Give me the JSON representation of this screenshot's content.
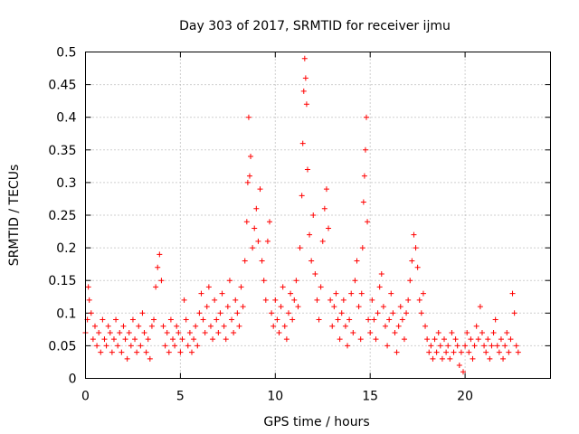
{
  "chart_data": {
    "type": "scatter",
    "title": "Day 303 of 2017, SRMTID for receiver ijmu",
    "xlabel": "GPS time / hours",
    "ylabel": "SRMTID / TECUs",
    "xlim": [
      0,
      24.5
    ],
    "ylim": [
      0,
      0.5
    ],
    "x_ticks": [
      "0",
      "5",
      "10",
      "15",
      "20"
    ],
    "x_tick_values": [
      0,
      5,
      10,
      15,
      20
    ],
    "y_ticks": [
      "0",
      "0.05",
      "0.1",
      "0.15",
      "0.2",
      "0.25",
      "0.3",
      "0.35",
      "0.4",
      "0.45",
      "0.5"
    ],
    "y_tick_values": [
      0,
      0.05,
      0.1,
      0.15,
      0.2,
      0.25,
      0.3,
      0.35,
      0.4,
      0.45,
      0.5
    ],
    "grid": true,
    "marker": "plus",
    "color": "#ff0000",
    "series": [
      {
        "name": "SRMTID",
        "points": [
          [
            0.0,
            0.07
          ],
          [
            0.1,
            0.09
          ],
          [
            0.15,
            0.14
          ],
          [
            0.2,
            0.12
          ],
          [
            0.3,
            0.1
          ],
          [
            0.4,
            0.06
          ],
          [
            0.5,
            0.08
          ],
          [
            0.6,
            0.05
          ],
          [
            0.7,
            0.07
          ],
          [
            0.8,
            0.04
          ],
          [
            0.9,
            0.09
          ],
          [
            1.0,
            0.06
          ],
          [
            1.1,
            0.05
          ],
          [
            1.2,
            0.08
          ],
          [
            1.3,
            0.07
          ],
          [
            1.4,
            0.04
          ],
          [
            1.5,
            0.06
          ],
          [
            1.6,
            0.09
          ],
          [
            1.7,
            0.05
          ],
          [
            1.8,
            0.07
          ],
          [
            1.9,
            0.04
          ],
          [
            2.0,
            0.08
          ],
          [
            2.1,
            0.06
          ],
          [
            2.2,
            0.03
          ],
          [
            2.3,
            0.07
          ],
          [
            2.4,
            0.05
          ],
          [
            2.5,
            0.09
          ],
          [
            2.6,
            0.06
          ],
          [
            2.7,
            0.04
          ],
          [
            2.8,
            0.08
          ],
          [
            2.9,
            0.05
          ],
          [
            3.0,
            0.1
          ],
          [
            3.1,
            0.07
          ],
          [
            3.2,
            0.04
          ],
          [
            3.3,
            0.06
          ],
          [
            3.4,
            0.03
          ],
          [
            3.5,
            0.08
          ],
          [
            3.6,
            0.09
          ],
          [
            3.7,
            0.14
          ],
          [
            3.8,
            0.17
          ],
          [
            3.9,
            0.19
          ],
          [
            4.0,
            0.15
          ],
          [
            4.1,
            0.08
          ],
          [
            4.2,
            0.05
          ],
          [
            4.3,
            0.07
          ],
          [
            4.4,
            0.04
          ],
          [
            4.5,
            0.09
          ],
          [
            4.6,
            0.06
          ],
          [
            4.7,
            0.05
          ],
          [
            4.8,
            0.08
          ],
          [
            4.9,
            0.07
          ],
          [
            5.0,
            0.04
          ],
          [
            5.1,
            0.06
          ],
          [
            5.2,
            0.12
          ],
          [
            5.3,
            0.09
          ],
          [
            5.4,
            0.05
          ],
          [
            5.5,
            0.07
          ],
          [
            5.6,
            0.04
          ],
          [
            5.7,
            0.06
          ],
          [
            5.8,
            0.08
          ],
          [
            5.9,
            0.05
          ],
          [
            6.0,
            0.1
          ],
          [
            6.1,
            0.13
          ],
          [
            6.2,
            0.09
          ],
          [
            6.3,
            0.07
          ],
          [
            6.4,
            0.11
          ],
          [
            6.5,
            0.14
          ],
          [
            6.6,
            0.08
          ],
          [
            6.7,
            0.06
          ],
          [
            6.8,
            0.12
          ],
          [
            6.9,
            0.09
          ],
          [
            7.0,
            0.07
          ],
          [
            7.1,
            0.1
          ],
          [
            7.2,
            0.13
          ],
          [
            7.3,
            0.08
          ],
          [
            7.4,
            0.06
          ],
          [
            7.5,
            0.11
          ],
          [
            7.6,
            0.15
          ],
          [
            7.7,
            0.09
          ],
          [
            7.8,
            0.07
          ],
          [
            7.9,
            0.12
          ],
          [
            8.0,
            0.1
          ],
          [
            8.1,
            0.08
          ],
          [
            8.2,
            0.14
          ],
          [
            8.3,
            0.11
          ],
          [
            8.4,
            0.18
          ],
          [
            8.5,
            0.24
          ],
          [
            8.55,
            0.3
          ],
          [
            8.6,
            0.4
          ],
          [
            8.65,
            0.31
          ],
          [
            8.7,
            0.34
          ],
          [
            8.8,
            0.2
          ],
          [
            8.9,
            0.23
          ],
          [
            9.0,
            0.26
          ],
          [
            9.1,
            0.21
          ],
          [
            9.2,
            0.29
          ],
          [
            9.3,
            0.18
          ],
          [
            9.4,
            0.15
          ],
          [
            9.5,
            0.12
          ],
          [
            9.6,
            0.21
          ],
          [
            9.7,
            0.24
          ],
          [
            9.8,
            0.1
          ],
          [
            9.9,
            0.08
          ],
          [
            10.0,
            0.12
          ],
          [
            10.1,
            0.09
          ],
          [
            10.2,
            0.07
          ],
          [
            10.3,
            0.11
          ],
          [
            10.4,
            0.14
          ],
          [
            10.5,
            0.08
          ],
          [
            10.6,
            0.06
          ],
          [
            10.7,
            0.1
          ],
          [
            10.8,
            0.13
          ],
          [
            10.9,
            0.09
          ],
          [
            11.0,
            0.12
          ],
          [
            11.1,
            0.15
          ],
          [
            11.2,
            0.11
          ],
          [
            11.3,
            0.2
          ],
          [
            11.4,
            0.28
          ],
          [
            11.45,
            0.36
          ],
          [
            11.5,
            0.44
          ],
          [
            11.55,
            0.49
          ],
          [
            11.6,
            0.46
          ],
          [
            11.65,
            0.42
          ],
          [
            11.7,
            0.32
          ],
          [
            11.8,
            0.22
          ],
          [
            11.9,
            0.18
          ],
          [
            12.0,
            0.25
          ],
          [
            12.1,
            0.16
          ],
          [
            12.2,
            0.12
          ],
          [
            12.3,
            0.09
          ],
          [
            12.4,
            0.14
          ],
          [
            12.5,
            0.21
          ],
          [
            12.6,
            0.26
          ],
          [
            12.7,
            0.29
          ],
          [
            12.8,
            0.23
          ],
          [
            12.9,
            0.12
          ],
          [
            13.0,
            0.08
          ],
          [
            13.1,
            0.11
          ],
          [
            13.2,
            0.13
          ],
          [
            13.3,
            0.09
          ],
          [
            13.4,
            0.06
          ],
          [
            13.5,
            0.1
          ],
          [
            13.6,
            0.12
          ],
          [
            13.7,
            0.08
          ],
          [
            13.8,
            0.05
          ],
          [
            13.9,
            0.09
          ],
          [
            14.0,
            0.13
          ],
          [
            14.1,
            0.07
          ],
          [
            14.2,
            0.15
          ],
          [
            14.3,
            0.18
          ],
          [
            14.4,
            0.11
          ],
          [
            14.5,
            0.06
          ],
          [
            14.55,
            0.13
          ],
          [
            14.6,
            0.2
          ],
          [
            14.65,
            0.27
          ],
          [
            14.7,
            0.31
          ],
          [
            14.75,
            0.35
          ],
          [
            14.8,
            0.4
          ],
          [
            14.85,
            0.24
          ],
          [
            14.9,
            0.09
          ],
          [
            15.0,
            0.07
          ],
          [
            15.1,
            0.12
          ],
          [
            15.2,
            0.09
          ],
          [
            15.3,
            0.06
          ],
          [
            15.4,
            0.1
          ],
          [
            15.5,
            0.14
          ],
          [
            15.6,
            0.16
          ],
          [
            15.7,
            0.11
          ],
          [
            15.8,
            0.08
          ],
          [
            15.9,
            0.05
          ],
          [
            16.0,
            0.09
          ],
          [
            16.1,
            0.13
          ],
          [
            16.2,
            0.1
          ],
          [
            16.3,
            0.07
          ],
          [
            16.4,
            0.04
          ],
          [
            16.5,
            0.08
          ],
          [
            16.6,
            0.11
          ],
          [
            16.7,
            0.09
          ],
          [
            16.8,
            0.06
          ],
          [
            16.9,
            0.1
          ],
          [
            17.0,
            0.12
          ],
          [
            17.1,
            0.15
          ],
          [
            17.2,
            0.18
          ],
          [
            17.3,
            0.22
          ],
          [
            17.4,
            0.2
          ],
          [
            17.5,
            0.17
          ],
          [
            17.6,
            0.12
          ],
          [
            17.7,
            0.1
          ],
          [
            17.8,
            0.13
          ],
          [
            17.9,
            0.08
          ],
          [
            18.0,
            0.06
          ],
          [
            18.1,
            0.04
          ],
          [
            18.2,
            0.05
          ],
          [
            18.3,
            0.03
          ],
          [
            18.4,
            0.06
          ],
          [
            18.5,
            0.04
          ],
          [
            18.6,
            0.07
          ],
          [
            18.7,
            0.05
          ],
          [
            18.8,
            0.03
          ],
          [
            18.9,
            0.06
          ],
          [
            19.0,
            0.04
          ],
          [
            19.1,
            0.05
          ],
          [
            19.2,
            0.03
          ],
          [
            19.3,
            0.07
          ],
          [
            19.4,
            0.04
          ],
          [
            19.5,
            0.06
          ],
          [
            19.6,
            0.05
          ],
          [
            19.7,
            0.02
          ],
          [
            19.8,
            0.04
          ],
          [
            19.9,
            0.01
          ],
          [
            20.0,
            0.05
          ],
          [
            20.1,
            0.07
          ],
          [
            20.2,
            0.04
          ],
          [
            20.3,
            0.06
          ],
          [
            20.4,
            0.03
          ],
          [
            20.5,
            0.05
          ],
          [
            20.6,
            0.08
          ],
          [
            20.7,
            0.06
          ],
          [
            20.8,
            0.11
          ],
          [
            20.9,
            0.07
          ],
          [
            21.0,
            0.05
          ],
          [
            21.1,
            0.04
          ],
          [
            21.2,
            0.06
          ],
          [
            21.3,
            0.03
          ],
          [
            21.4,
            0.05
          ],
          [
            21.5,
            0.07
          ],
          [
            21.6,
            0.09
          ],
          [
            21.7,
            0.05
          ],
          [
            21.8,
            0.04
          ],
          [
            21.9,
            0.06
          ],
          [
            22.0,
            0.03
          ],
          [
            22.1,
            0.05
          ],
          [
            22.2,
            0.07
          ],
          [
            22.3,
            0.04
          ],
          [
            22.4,
            0.06
          ],
          [
            22.5,
            0.13
          ],
          [
            22.6,
            0.1
          ],
          [
            22.7,
            0.05
          ],
          [
            22.8,
            0.04
          ]
        ]
      }
    ]
  }
}
